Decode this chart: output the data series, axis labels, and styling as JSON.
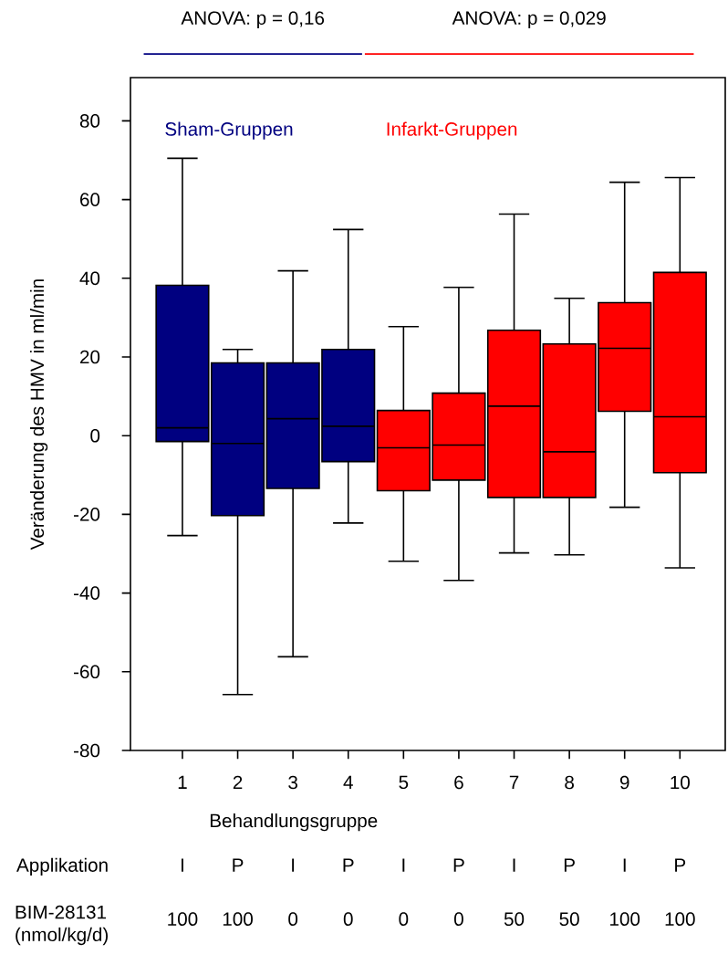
{
  "chart_data": {
    "type": "box",
    "ylabel": "Veränderung des HMV in ml/min",
    "xlabel": "Behandlungsgruppe",
    "categories": [
      "1",
      "2",
      "3",
      "4",
      "5",
      "6",
      "7",
      "8",
      "9",
      "10"
    ],
    "colors": [
      "#000080",
      "#000080",
      "#000080",
      "#000080",
      "#ff0000",
      "#ff0000",
      "#ff0000",
      "#ff0000",
      "#ff0000",
      "#ff0000"
    ],
    "boxes": [
      {
        "low": -25.4,
        "q1": -1.5,
        "median": 2,
        "q3": 38.2,
        "high": 70.5
      },
      {
        "low": -65.8,
        "q1": -20.3,
        "median": -2,
        "q3": 18.5,
        "high": 21.9
      },
      {
        "low": -56.2,
        "q1": -13.4,
        "median": 4.3,
        "q3": 18.5,
        "high": 41.9
      },
      {
        "low": -22.2,
        "q1": -6.6,
        "median": 2.4,
        "q3": 21.9,
        "high": 52.4
      },
      {
        "low": -31.9,
        "q1": -14,
        "median": -3.1,
        "q3": 6.4,
        "high": 27.7
      },
      {
        "low": -36.8,
        "q1": -11.3,
        "median": -2.4,
        "q3": 10.8,
        "high": 37.7
      },
      {
        "low": -29.8,
        "q1": -15.7,
        "median": 7.5,
        "q3": 26.8,
        "high": 56.3
      },
      {
        "low": -30.3,
        "q1": -15.7,
        "median": -4.1,
        "q3": 23.3,
        "high": 34.9
      },
      {
        "low": -18.2,
        "q1": 6.2,
        "median": 22.2,
        "q3": 33.8,
        "high": 64.4
      },
      {
        "low": -33.6,
        "q1": -9.4,
        "median": 4.8,
        "q3": 41.5,
        "high": 65.6
      }
    ],
    "ylim": [
      -80,
      91
    ],
    "yticks": [
      -80,
      -60,
      -40,
      -20,
      0,
      20,
      40,
      60,
      80
    ],
    "grid": false,
    "annotations": [
      "ANOVA: p = 0,16",
      "ANOVA: p = 0,029",
      "Sham-Gruppen",
      "Infarkt-Gruppen",
      "Applikation",
      "I",
      "P",
      "I",
      "P",
      "I",
      "P",
      "I",
      "P",
      "I",
      "P",
      "BIM-28131 (nmol/kg/d)",
      "100",
      "100",
      "0",
      "0",
      "0",
      "0",
      "50",
      "50",
      "100",
      "100"
    ]
  }
}
